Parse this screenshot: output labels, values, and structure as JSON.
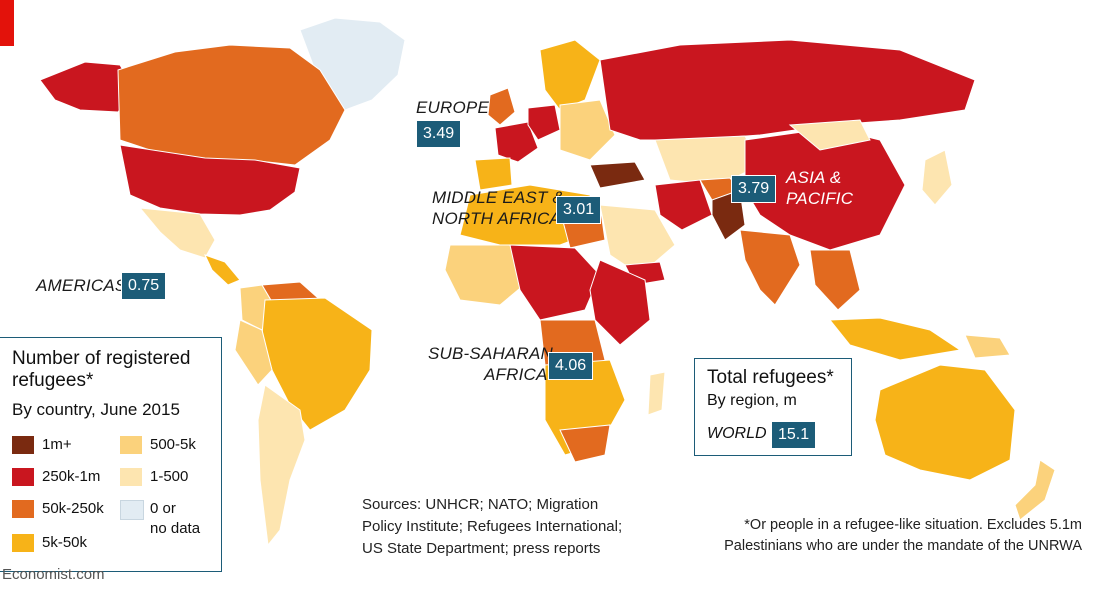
{
  "colors": {
    "1m+": "#7a2a10",
    "250k-1m": "#c9161f",
    "50k-250k": "#e26a1f",
    "5k-50k": "#f7b318",
    "500-5k": "#fbd27c",
    "1-500": "#fde5b0",
    "none": "#e2ecf3",
    "boxblue": "#1c5c78"
  },
  "regions": [
    {
      "label": "EUROPE",
      "value": "3.49"
    },
    {
      "label": "MIDDLE EAST &",
      "label2": "NORTH AFRICA",
      "value": "3.01"
    },
    {
      "label": "ASIA &",
      "label2": "PACIFIC",
      "value": "3.79"
    },
    {
      "label": "AMERICAS",
      "value": "0.75"
    },
    {
      "label": "SUB-SAHARAN",
      "label2": "AFRICA",
      "value": "4.06"
    }
  ],
  "legend": {
    "title": "Number of registered refugees*",
    "subtitle": "By country, June 2015",
    "items": [
      {
        "label": "1m+",
        "color_key": "1m+"
      },
      {
        "label": "250k-1m",
        "color_key": "250k-1m"
      },
      {
        "label": "50k-250k",
        "color_key": "50k-250k"
      },
      {
        "label": "5k-50k",
        "color_key": "5k-50k"
      },
      {
        "label": "500-5k",
        "color_key": "500-5k"
      },
      {
        "label": "1-500",
        "color_key": "1-500"
      },
      {
        "label": "0 or",
        "label2": "no data",
        "color_key": "none"
      }
    ]
  },
  "total": {
    "title": "Total refugees*",
    "subtitle": "By region, m",
    "world_label": "WORLD",
    "world_value": "15.1"
  },
  "sources": {
    "line1": "Sources: UNHCR; NATO; Migration",
    "line2": "Policy Institute; Refugees International;",
    "line3": "US State Department; press reports"
  },
  "footnote": {
    "line1": "*Or people in a refugee-like situation. Excludes 5.1m",
    "line2": "Palestinians who are under the mandate of the UNRWA"
  },
  "brand": "Economist.com"
}
